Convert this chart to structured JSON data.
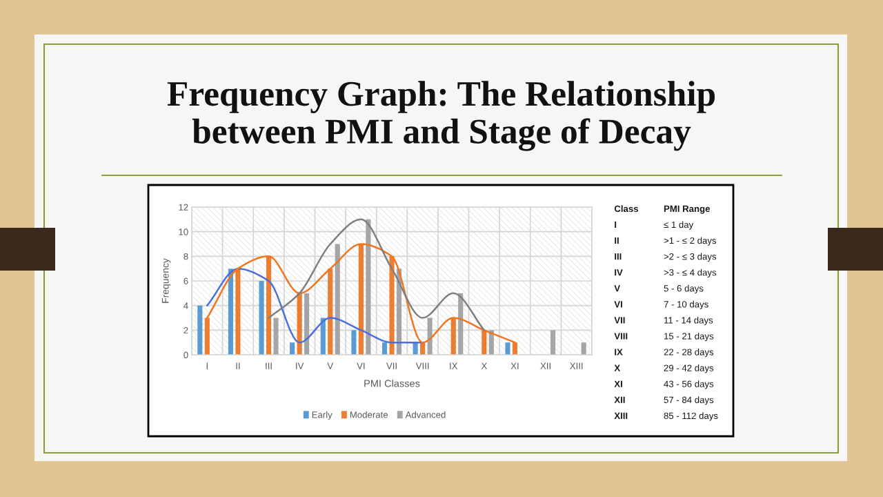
{
  "chart_data": [
    {
      "type": "bar",
      "title": "Frequency Graph: The Relationship\nbetween PMI and Stage of Decay",
      "xlabel": "PMI Classes",
      "ylabel": "Frequency",
      "categories": [
        "I",
        "II",
        "III",
        "IV",
        "V",
        "VI",
        "VII",
        "VIII",
        "IX",
        "X",
        "XI",
        "XII",
        "XIII"
      ],
      "ylim": [
        0,
        12
      ],
      "yticks": [
        0,
        2,
        4,
        6,
        8,
        10,
        12
      ],
      "grid": true,
      "legend": "bottom",
      "series": [
        {
          "name": "Early",
          "color": "#5b9bd5",
          "values": [
            4,
            7,
            6,
            1,
            3,
            2,
            1,
            1,
            null,
            null,
            1,
            null,
            null
          ]
        },
        {
          "name": "Moderate",
          "color": "#ed7d31",
          "values": [
            3,
            7,
            8,
            5,
            7,
            9,
            8,
            1,
            3,
            2,
            1,
            null,
            null
          ]
        },
        {
          "name": "Advanced",
          "color": "#a5a5a5",
          "values": [
            null,
            null,
            3,
            5,
            9,
            11,
            7,
            3,
            5,
            2,
            null,
            2,
            1
          ]
        },
        {
          "type": "line",
          "color": "#4a6ee0",
          "values": [
            4,
            7,
            6,
            1,
            3,
            2,
            1,
            1,
            null,
            null,
            null,
            null,
            null
          ]
        },
        {
          "type": "line",
          "color": "#f0751e",
          "values": [
            3,
            7,
            8,
            5,
            7,
            9,
            8,
            1,
            3,
            2,
            1,
            null,
            null
          ]
        },
        {
          "type": "line",
          "color": "#7f7f7f",
          "values": [
            null,
            null,
            3,
            5,
            9,
            11,
            7,
            3,
            5,
            2,
            null,
            null,
            null
          ]
        }
      ]
    },
    {
      "type": "other",
      "annotations": [
        "Class",
        "PMI Range",
        "I",
        "≤ 1 day",
        "II",
        ">1 - ≤ 2 days",
        "III",
        ">2 - ≤ 3 days",
        "IV",
        ">3 - ≤ 4 days",
        "V",
        "5 - 6 days",
        "VI",
        "7 - 10 days",
        "VII",
        "11 - 14 days",
        "VIII",
        "15 - 21 days",
        "IX",
        "22 - 28 days",
        "X",
        "29 - 42 days",
        "XI",
        "43 - 56 days",
        "XII",
        "57 - 84 days",
        "XIII",
        "85 - 112 days"
      ]
    }
  ]
}
